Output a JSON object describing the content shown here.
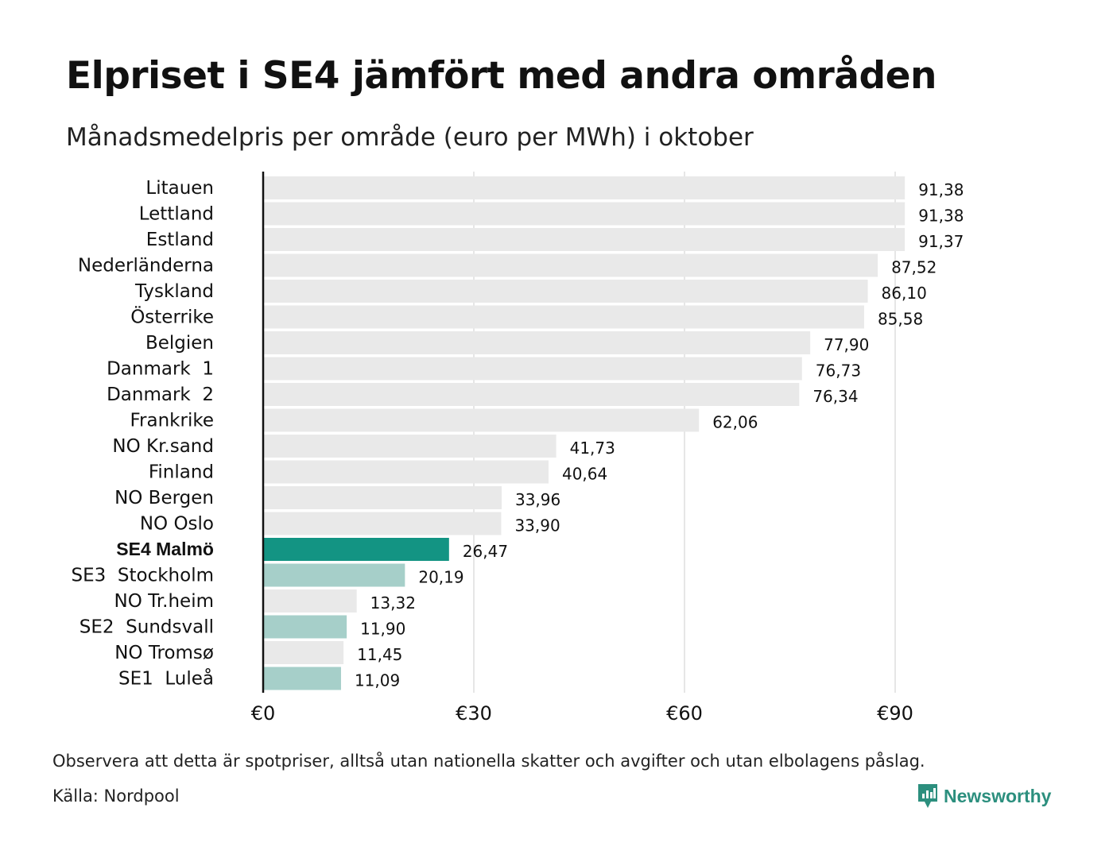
{
  "header": {
    "title": "Elpriset i SE4 jämfört med andra områden",
    "subtitle": "Månadsmedelpris per område (euro per MWh) i oktober"
  },
  "footer": {
    "note": "Observera att detta är spotpriser, alltså utan nationella skatter och avgifter och utan elbolagens påslag.",
    "source": "Källa: Nordpool",
    "brand": "Newsworthy"
  },
  "colors": {
    "highlight": "#139483",
    "swedish_area": "#a6cfc9",
    "other_area": "#e9e9e9",
    "grid": "#cccccc",
    "axis": "#111111",
    "brand": "#2c8f7e"
  },
  "chart_data": {
    "type": "bar",
    "orientation": "horizontal",
    "title": "Elpriset i SE4 jämfört med andra områden",
    "subtitle": "Månadsmedelpris per område (euro per MWh) i oktober",
    "xlim": [
      0,
      90
    ],
    "x_ticks": [
      0,
      30,
      60,
      90
    ],
    "x_tick_labels": [
      "€0",
      "€30",
      "€60",
      "€90"
    ],
    "grid": "vertical",
    "categories": [
      "Litauen",
      "Lettland",
      "Estland",
      "Nederländerna",
      "Tyskland",
      "Österrike",
      "Belgien",
      "Danmark  1",
      "Danmark  2",
      "Frankrike",
      "NO Kr.sand",
      "Finland",
      "NO Bergen",
      "NO Oslo",
      "SE4 Malmö",
      "SE3  Stockholm",
      "NO Tr.heim",
      "SE2  Sundsvall",
      "NO Tromsø",
      "SE1  Luleå"
    ],
    "values": [
      91.38,
      91.38,
      91.37,
      87.52,
      86.1,
      85.58,
      77.9,
      76.73,
      76.34,
      62.06,
      41.73,
      40.64,
      33.96,
      33.9,
      26.47,
      20.19,
      13.32,
      11.9,
      11.45,
      11.09
    ],
    "value_labels": [
      "91,38",
      "91,38",
      "91,37",
      "87,52",
      "86,10",
      "85,58",
      "77,90",
      "76,73",
      "76,34",
      "62,06",
      "41,73",
      "40,64",
      "33,96",
      "33,90",
      "26,47",
      "20,19",
      "13,32",
      "11,90",
      "11,45",
      "11,09"
    ],
    "bar_kind": [
      "other",
      "other",
      "other",
      "other",
      "other",
      "other",
      "other",
      "other",
      "other",
      "other",
      "other",
      "other",
      "other",
      "other",
      "highlight",
      "swedish",
      "other",
      "swedish",
      "other",
      "swedish"
    ]
  }
}
